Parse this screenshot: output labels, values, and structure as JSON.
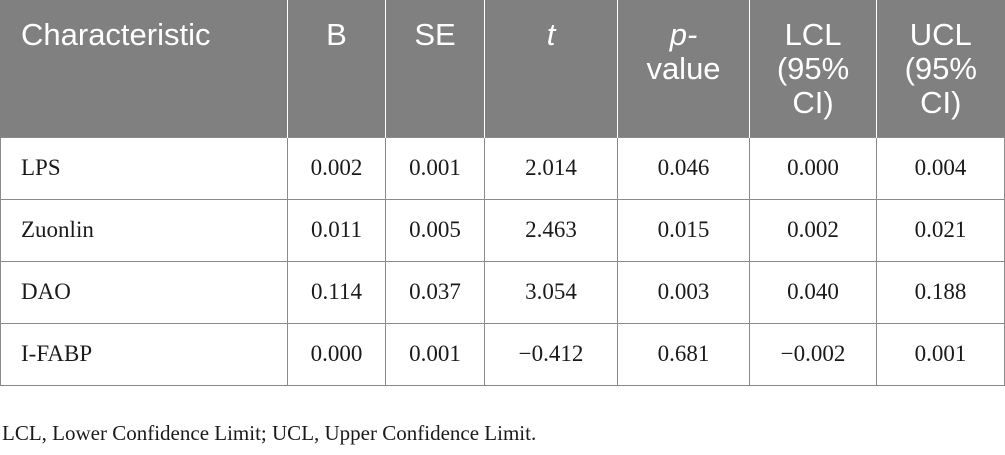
{
  "table": {
    "headers": [
      {
        "text": "Characteristic",
        "italic": false
      },
      {
        "text": "B",
        "italic": false
      },
      {
        "text": "SE",
        "italic": false
      },
      {
        "text": "t",
        "italic": true
      },
      {
        "text": "p-",
        "italic": true,
        "text2": "value"
      },
      {
        "text": "LCL (95% CI)",
        "italic": false
      },
      {
        "text": "UCL (95% CI)",
        "italic": false
      }
    ],
    "rows": [
      [
        "LPS",
        "0.002",
        "0.001",
        "2.014",
        "0.046",
        "0.000",
        "0.004"
      ],
      [
        "Zuonlin",
        "0.011",
        "0.005",
        "2.463",
        "0.015",
        "0.002",
        "0.021"
      ],
      [
        "DAO",
        "0.114",
        "0.037",
        "3.054",
        "0.003",
        "0.040",
        "0.188"
      ],
      [
        "I-FABP",
        "0.000",
        "0.001",
        "−0.412",
        "0.681",
        "−0.002",
        "0.001"
      ]
    ]
  },
  "footnote": "LCL, Lower Confidence Limit; UCL, Upper Confidence Limit."
}
